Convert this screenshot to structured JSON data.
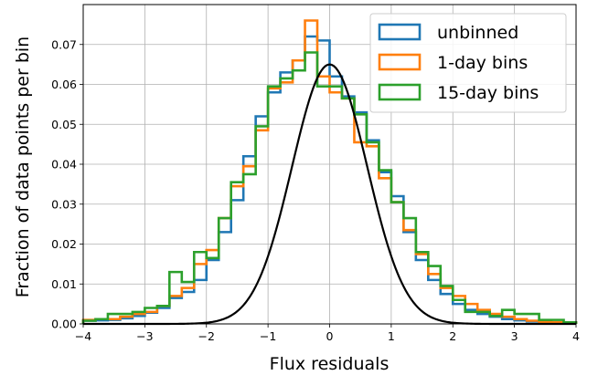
{
  "chart_data": {
    "type": "line",
    "title": "",
    "xlabel": "Flux residuals",
    "ylabel": "Fraction of data points per bin",
    "xlim": [
      -4,
      4
    ],
    "ylim": [
      0,
      0.08
    ],
    "grid": true,
    "legend_position": "top-right",
    "x_ticks": [
      "−4",
      "−3",
      "−2",
      "−1",
      "0",
      "1",
      "2",
      "3",
      "4"
    ],
    "y_ticks": [
      "0.00",
      "0.01",
      "0.02",
      "0.03",
      "0.04",
      "0.05",
      "0.06",
      "0.07"
    ],
    "bin_edges": [
      -4.0,
      -3.8,
      -3.6,
      -3.4,
      -3.2,
      -3.0,
      -2.8,
      -2.6,
      -2.4,
      -2.2,
      -2.0,
      -1.8,
      -1.6,
      -1.4,
      -1.2,
      -1.0,
      -0.8,
      -0.6,
      -0.4,
      -0.2,
      0.0,
      0.2,
      0.4,
      0.6,
      0.8,
      1.0,
      1.2,
      1.4,
      1.6,
      1.8,
      2.0,
      2.2,
      2.4,
      2.6,
      2.8,
      3.0,
      3.2,
      3.4,
      3.6,
      3.8,
      4.0
    ],
    "series": [
      {
        "name": "unbinned",
        "color": "#1f77b4",
        "values": [
          0.0008,
          0.0009,
          0.001,
          0.0014,
          0.002,
          0.0028,
          0.004,
          0.0065,
          0.008,
          0.011,
          0.016,
          0.023,
          0.031,
          0.042,
          0.052,
          0.058,
          0.063,
          0.066,
          0.072,
          0.071,
          0.062,
          0.057,
          0.053,
          0.046,
          0.038,
          0.032,
          0.023,
          0.016,
          0.011,
          0.0075,
          0.005,
          0.0035,
          0.0025,
          0.0018,
          0.0012,
          0.0009,
          0.0006,
          0.0004,
          0.0003,
          0.0002
        ]
      },
      {
        "name": "1-day bins",
        "color": "#ff7f0e",
        "values": [
          0.001,
          0.0012,
          0.0012,
          0.0018,
          0.0025,
          0.003,
          0.0045,
          0.007,
          0.009,
          0.015,
          0.0185,
          0.0265,
          0.0345,
          0.0395,
          0.0485,
          0.059,
          0.0605,
          0.066,
          0.076,
          0.062,
          0.058,
          0.0565,
          0.0455,
          0.0445,
          0.0365,
          0.0305,
          0.0235,
          0.0175,
          0.0125,
          0.009,
          0.007,
          0.005,
          0.0035,
          0.0025,
          0.0018,
          0.0012,
          0.0008,
          0.0005,
          0.0004,
          0.0003
        ]
      },
      {
        "name": "15-day bins",
        "color": "#2ca02c",
        "values": [
          0.0008,
          0.0012,
          0.0025,
          0.0025,
          0.003,
          0.004,
          0.0045,
          0.013,
          0.0105,
          0.018,
          0.0165,
          0.0265,
          0.0355,
          0.0375,
          0.0495,
          0.0595,
          0.0615,
          0.0635,
          0.068,
          0.0595,
          0.0595,
          0.0565,
          0.0525,
          0.0455,
          0.0385,
          0.0305,
          0.0265,
          0.018,
          0.0145,
          0.0095,
          0.006,
          0.003,
          0.003,
          0.002,
          0.0035,
          0.0025,
          0.0025,
          0.001,
          0.001,
          0.0004
        ]
      },
      {
        "name": "",
        "color": "#000000",
        "kind": "gaussian",
        "mean": 0.0,
        "sigma": 0.61,
        "amplitude": 0.065
      }
    ]
  }
}
